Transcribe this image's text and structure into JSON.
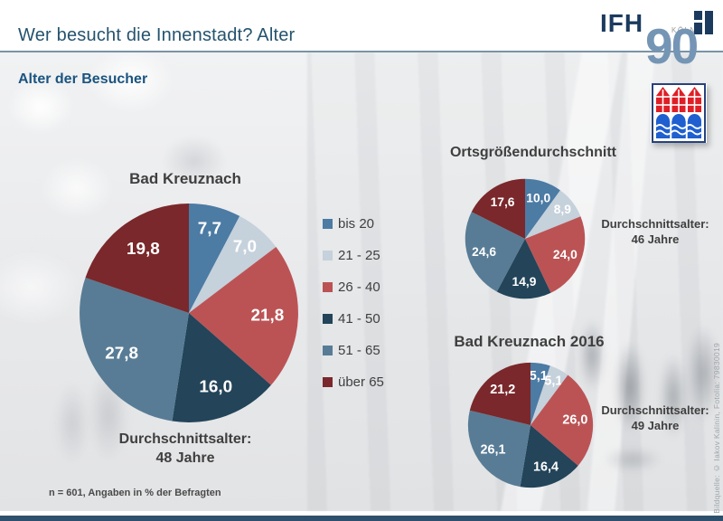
{
  "slide": {
    "title": "Wer besucht die Innenstadt? Alter",
    "subtitle": "Alter der Besucher",
    "footnote": "n = 601, Angaben in % der Befragten",
    "source_credit": "Bildquelle: © Iakov Kalinin, Fotolia: 79830019"
  },
  "logo": {
    "ifh": "IFH",
    "koeln": "KÖLN",
    "anniversary": "90"
  },
  "colors": {
    "palette": [
      "#4C7BA4",
      "#C5D1DB",
      "#BB5355",
      "#234459",
      "#587C95",
      "#7A282B"
    ],
    "title_blue": "#24536F",
    "subtitle_blue": "#1A5480",
    "header_rule": "#7A93A8",
    "bottom_bar": "#2E506C",
    "logo_navy": "#1B3A5E",
    "logo_90_blue": "#7595B5"
  },
  "legend": {
    "items": [
      {
        "label": "bis 20",
        "color": "#4C7BA4"
      },
      {
        "label": "21 - 25",
        "color": "#C5D1DB"
      },
      {
        "label": "26 - 40",
        "color": "#BB5355"
      },
      {
        "label": "41 - 50",
        "color": "#234459"
      },
      {
        "label": "51 - 65",
        "color": "#587C95"
      },
      {
        "label": "über 65",
        "color": "#7A282B"
      }
    ]
  },
  "chart_data": [
    {
      "type": "pie",
      "title": "Bad Kreuznach",
      "categories": [
        "bis 20",
        "21 - 25",
        "26 - 40",
        "41 - 50",
        "51 - 65",
        "über 65"
      ],
      "values": [
        7.7,
        7.0,
        21.8,
        16.0,
        27.8,
        19.8
      ],
      "labels": [
        "7,7",
        "7,0",
        "21,8",
        "16,0",
        "27,8",
        "19,8"
      ],
      "colors": [
        "#4C7BA4",
        "#C5D1DB",
        "#BB5355",
        "#234459",
        "#587C95",
        "#7A282B"
      ],
      "caption_line1": "Durchschnittsalter:",
      "caption_line2": "48 Jahre",
      "legend_position": "right-of-chart"
    },
    {
      "type": "pie",
      "title": "Ortsgrößendurchschnitt",
      "categories": [
        "bis 20",
        "21 - 25",
        "26 - 40",
        "41 - 50",
        "51 - 65",
        "über 65"
      ],
      "values": [
        10.0,
        8.9,
        24.0,
        14.9,
        24.6,
        17.6
      ],
      "labels": [
        "10,0",
        "8,9",
        "24,0",
        "14,9",
        "24,6",
        "17,6"
      ],
      "colors": [
        "#4C7BA4",
        "#C5D1DB",
        "#BB5355",
        "#234459",
        "#587C95",
        "#7A282B"
      ],
      "caption_line1": "Durchschnittsalter:",
      "caption_line2": "46 Jahre",
      "legend_position": "shared"
    },
    {
      "type": "pie",
      "title": "Bad Kreuznach 2016",
      "categories": [
        "bis 20",
        "21 - 25",
        "26 - 40",
        "41 - 50",
        "51 - 65",
        "über 65"
      ],
      "values": [
        5.1,
        5.1,
        26.0,
        16.4,
        26.1,
        21.2
      ],
      "labels": [
        "5,1",
        "5,1",
        "26,0",
        "16,4",
        "26,1",
        "21,2"
      ],
      "colors": [
        "#4C7BA4",
        "#C5D1DB",
        "#BB5355",
        "#234459",
        "#587C95",
        "#7A282B"
      ],
      "caption_line1": "Durchschnittsalter:",
      "caption_line2": "49 Jahre",
      "legend_position": "shared"
    }
  ]
}
